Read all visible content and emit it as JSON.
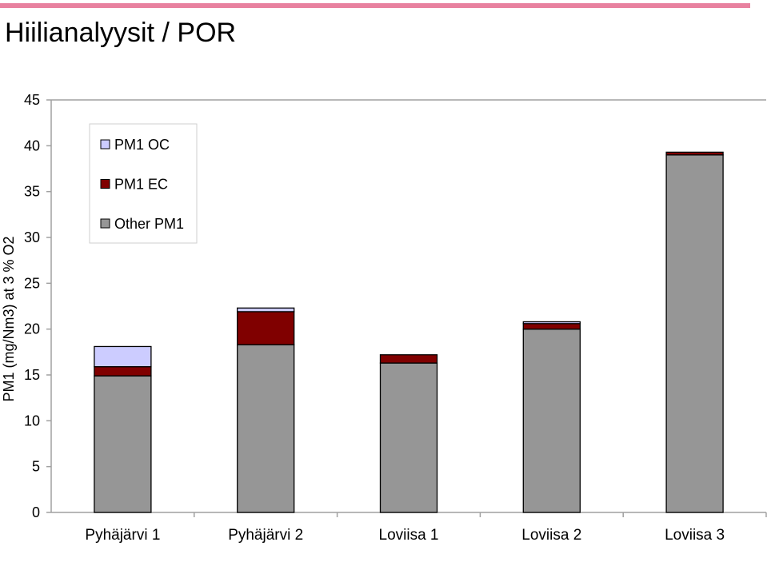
{
  "page": {
    "title": "Hiilianalyysit / POR",
    "accent_color": "#e8819f"
  },
  "chart_data": {
    "type": "bar",
    "stacked": true,
    "categories": [
      "Pyhäjärvi 1",
      "Pyhäjärvi 2",
      "Loviisa 1",
      "Loviisa 2",
      "Loviisa 3"
    ],
    "series": [
      {
        "name": "Other PM1",
        "color": "#969696",
        "values": [
          14.9,
          18.3,
          16.3,
          20.0,
          39.0
        ]
      },
      {
        "name": "PM1 EC",
        "color": "#800000",
        "values": [
          1.0,
          3.6,
          0.9,
          0.6,
          0.3
        ]
      },
      {
        "name": "PM1 OC",
        "color": "#ccccff",
        "values": [
          2.2,
          0.4,
          0.0,
          0.2,
          0.0
        ]
      }
    ],
    "legend_order": [
      "PM1 OC",
      "PM1 EC",
      "Other PM1"
    ],
    "legend_position": "top-left",
    "ylabel": "PM1 (mg/Nm3) at 3 % O2",
    "xlabel": "",
    "ylim": [
      0,
      45
    ],
    "yticks": [
      0,
      5,
      10,
      15,
      20,
      25,
      30,
      35,
      40,
      45
    ],
    "grid": false
  }
}
